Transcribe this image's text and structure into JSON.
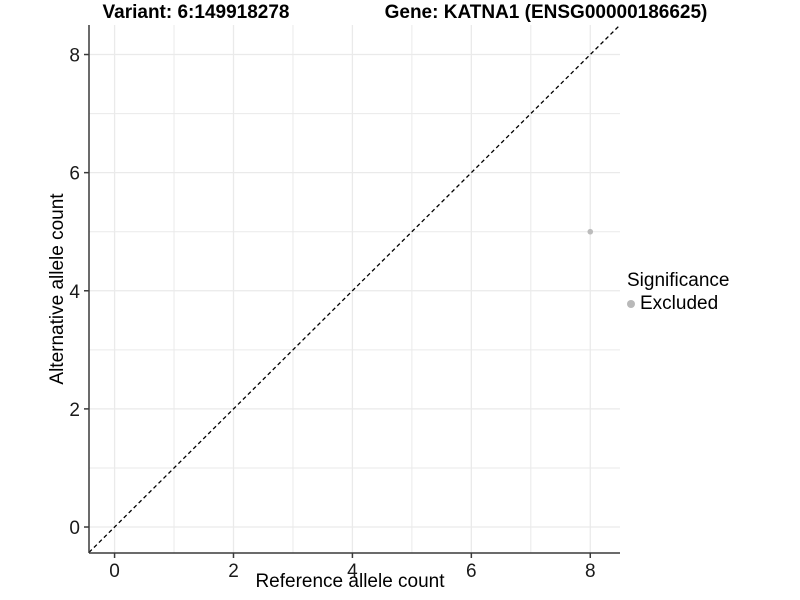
{
  "titles": {
    "variant": "Variant: 6:149918278",
    "gene": "Gene: KATNA1 (ENSG00000186625)"
  },
  "chart_data": {
    "type": "scatter",
    "title": "Variant: 6:149918278 — Gene: KATNA1 (ENSG00000186625)",
    "xlabel": "Reference allele count",
    "ylabel": "Alternative allele count",
    "xlim": [
      -0.43,
      8.5
    ],
    "ylim": [
      -0.44,
      8.5
    ],
    "xticks": [
      0,
      2,
      4,
      6,
      8
    ],
    "yticks": [
      0,
      2,
      4,
      6,
      8
    ],
    "grid": {
      "on": true,
      "interval": 1,
      "color": "#eaeaea"
    },
    "reference_line": {
      "kind": "identity y=x",
      "style": "dashed",
      "color": "#000000"
    },
    "series": [
      {
        "name": "Excluded",
        "color": "#bcbcbc",
        "points": [
          {
            "x": 8,
            "y": 5
          }
        ]
      }
    ],
    "legend": {
      "position": "right",
      "title": "Significance",
      "items": [
        {
          "label": "Excluded",
          "color": "#b9b9b9"
        }
      ]
    },
    "axis_line_color": "#3a3a3a",
    "tick_label_color": "#1a1a1a",
    "tick_label_size": 19
  }
}
